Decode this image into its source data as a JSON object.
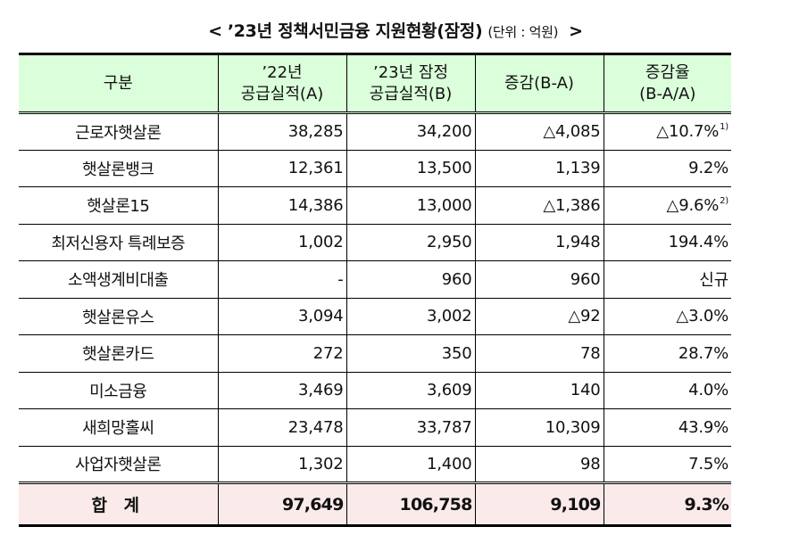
{
  "title": {
    "open_bracket": "<",
    "text": "’23년 정책서민금융 지원현황(잠정)",
    "unit": "(단위 : 억원)",
    "close_bracket": ">"
  },
  "table": {
    "headers": [
      {
        "line1": "구분",
        "line2": ""
      },
      {
        "line1": "’22년",
        "line2": "공급실적(A)"
      },
      {
        "line1": "’23년 잠정",
        "line2": "공급실적(B)"
      },
      {
        "line1": "증감(B-A)",
        "line2": ""
      },
      {
        "line1": "증감율",
        "line2": "(B-A/A)"
      }
    ],
    "rows": [
      {
        "name": "근로자햇살론",
        "a": "38,285",
        "b": "34,200",
        "diff": "△4,085",
        "rate": "△10.7%",
        "footnote": "1)"
      },
      {
        "name": "햇살론뱅크",
        "a": "12,361",
        "b": "13,500",
        "diff": "1,139",
        "rate": "9.2%",
        "footnote": ""
      },
      {
        "name": "햇살론15",
        "a": "14,386",
        "b": "13,000",
        "diff": "△1,386",
        "rate": "△9.6%",
        "footnote": "2)"
      },
      {
        "name": "최저신용자 특례보증",
        "a": "1,002",
        "b": "2,950",
        "diff": "1,948",
        "rate": "194.4%",
        "footnote": ""
      },
      {
        "name": "소액생계비대출",
        "a": "-",
        "b": "960",
        "diff": "960",
        "rate": "신규",
        "footnote": ""
      },
      {
        "name": "햇살론유스",
        "a": "3,094",
        "b": "3,002",
        "diff": "△92",
        "rate": "△3.0%",
        "footnote": ""
      },
      {
        "name": "햇살론카드",
        "a": "272",
        "b": "350",
        "diff": "78",
        "rate": "28.7%",
        "footnote": ""
      },
      {
        "name": "미소금융",
        "a": "3,469",
        "b": "3,609",
        "diff": "140",
        "rate": "4.0%",
        "footnote": ""
      },
      {
        "name": "새희망홀씨",
        "a": "23,478",
        "b": "33,787",
        "diff": "10,309",
        "rate": "43.9%",
        "footnote": ""
      },
      {
        "name": "사업자햇살론",
        "a": "1,302",
        "b": "1,400",
        "diff": "98",
        "rate": "7.5%",
        "footnote": ""
      }
    ],
    "total": {
      "name": "합 계",
      "a": "97,649",
      "b": "106,758",
      "diff": "9,109",
      "rate": "9.3%"
    }
  },
  "colors": {
    "header_bg": "#dbffdb",
    "total_bg": "#fbeaea",
    "border": "#000000"
  }
}
